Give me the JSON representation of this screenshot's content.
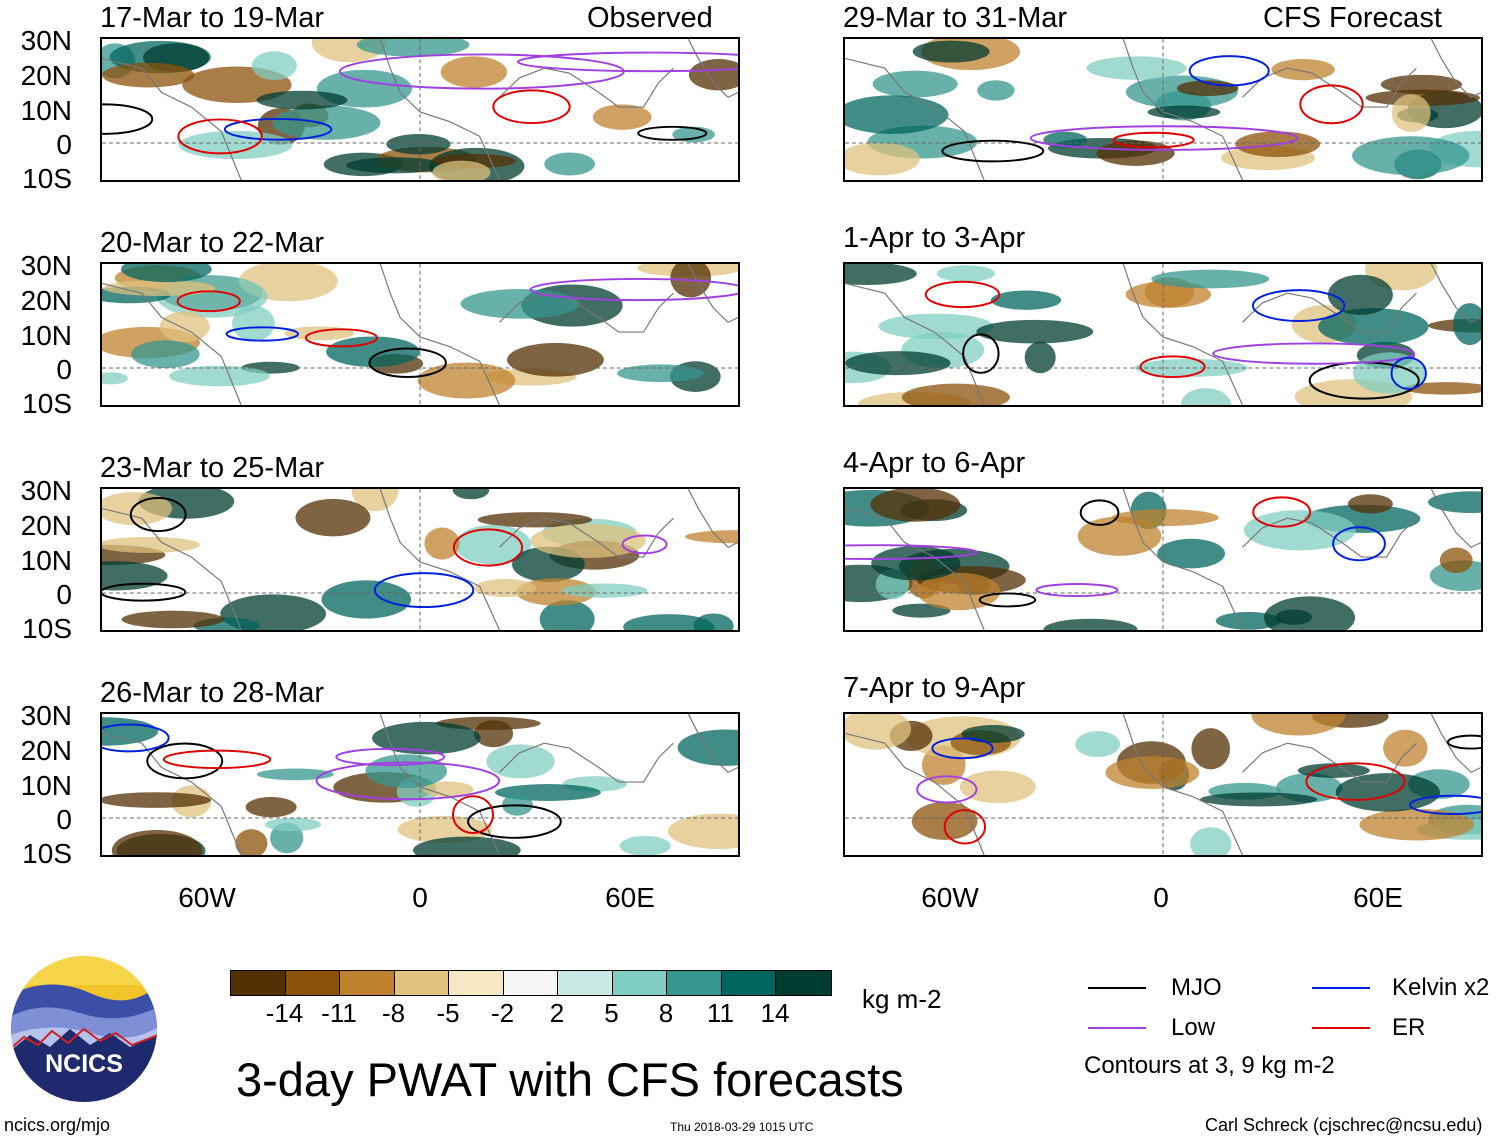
{
  "panels": {
    "p1": {
      "date": "17-Mar to 19-Mar",
      "tag": "Observed"
    },
    "p2": {
      "date": "20-Mar to 22-Mar"
    },
    "p3": {
      "date": "23-Mar to 25-Mar"
    },
    "p4": {
      "date": "26-Mar to 28-Mar"
    },
    "p5": {
      "date": "29-Mar to 31-Mar",
      "tag": "CFS Forecast"
    },
    "p6": {
      "date": "1-Apr to 3-Apr"
    },
    "p7": {
      "date": "4-Apr to 6-Apr"
    },
    "p8": {
      "date": "7-Apr to 9-Apr"
    }
  },
  "axes": {
    "lat_labels": [
      "30N",
      "20N",
      "10N",
      "0",
      "10S"
    ],
    "lon_labels": [
      "60W",
      "0",
      "60E"
    ]
  },
  "colorbar": {
    "ticks": [
      "-14",
      "-11",
      "-8",
      "-5",
      "-2",
      "2",
      "5",
      "8",
      "11",
      "14"
    ],
    "unit": "kg m-2",
    "colors": [
      "#543005",
      "#8c510a",
      "#bf812d",
      "#dfc27d",
      "#f6e8c3",
      "#f5f5f5",
      "#c7eae5",
      "#80cdc1",
      "#35978f",
      "#01665e",
      "#003c30"
    ]
  },
  "legend": {
    "mjo": "MJO",
    "low": "Low",
    "kelvin": "Kelvin x2",
    "er": "ER",
    "note": "Contours at 3, 9 kg m-2",
    "colors": {
      "mjo": "#000000",
      "low": "#a040e0",
      "kelvin": "#0020e0",
      "er": "#e00000"
    }
  },
  "footer": {
    "title": "3-day PWAT with CFS forecasts",
    "left": "ncics.org/mjo",
    "date": "Thu 2018-03-29 1015 UTC",
    "right": "Carl Schreck (cjschrec@ncsu.edu)",
    "logo_text": "NCICS"
  }
}
